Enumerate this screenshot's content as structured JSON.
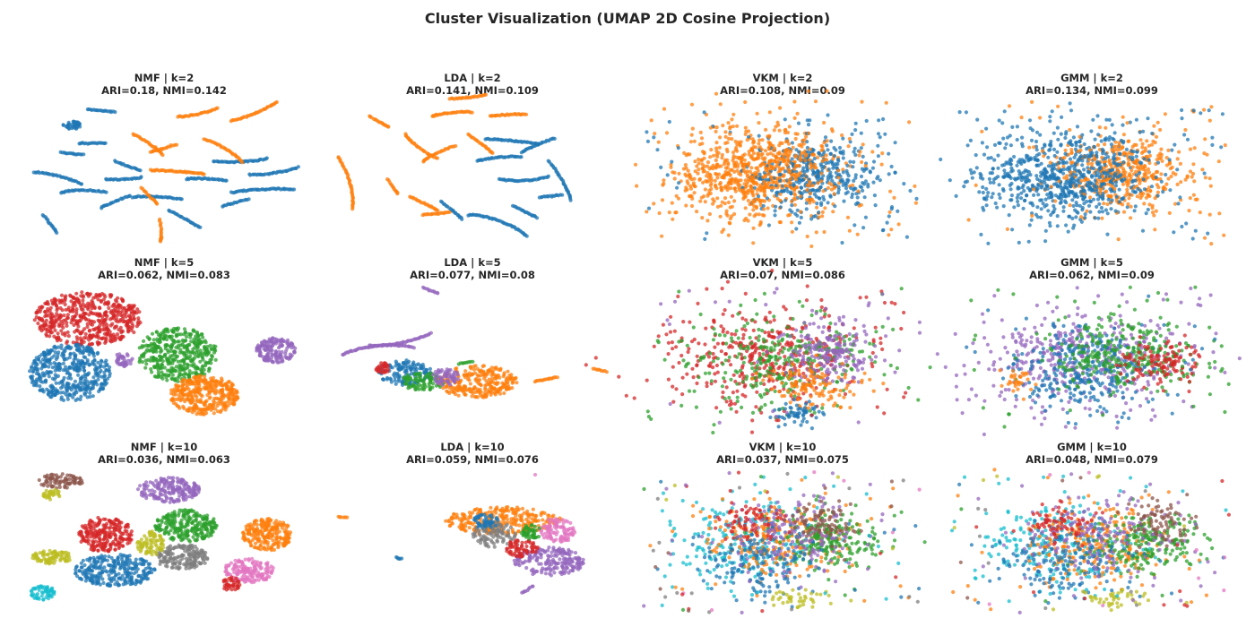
{
  "chart_data": {
    "type": "scatter",
    "title": "Cluster Visualization (UMAP 2D Cosine Projection)",
    "colors": [
      "#1f77b4",
      "#ff7f0e",
      "#2ca02c",
      "#d62728",
      "#9467bd",
      "#8c564b",
      "#e377c2",
      "#7f7f7f",
      "#bcbd22",
      "#17becf"
    ],
    "panels": [
      {
        "title": "NMF | k=2",
        "subtitle": "ARI=0.18, NMI=0.142",
        "method": "NMF",
        "k": 2,
        "ari": 0.18,
        "nmi": 0.142
      },
      {
        "title": "LDA | k=2",
        "subtitle": "ARI=0.141, NMI=0.109",
        "method": "LDA",
        "k": 2,
        "ari": 0.141,
        "nmi": 0.109
      },
      {
        "title": "VKM | k=2",
        "subtitle": "ARI=0.108, NMI=0.09",
        "method": "VKM",
        "k": 2,
        "ari": 0.108,
        "nmi": 0.09
      },
      {
        "title": "GMM | k=2",
        "subtitle": "ARI=0.134, NMI=0.099",
        "method": "GMM",
        "k": 2,
        "ari": 0.134,
        "nmi": 0.099
      },
      {
        "title": "NMF | k=5",
        "subtitle": "ARI=0.062, NMI=0.083",
        "method": "NMF",
        "k": 5,
        "ari": 0.062,
        "nmi": 0.083
      },
      {
        "title": "LDA | k=5",
        "subtitle": "ARI=0.077, NMI=0.08",
        "method": "LDA",
        "k": 5,
        "ari": 0.077,
        "nmi": 0.08
      },
      {
        "title": "VKM | k=5",
        "subtitle": "ARI=0.07, NMI=0.086",
        "method": "VKM",
        "k": 5,
        "ari": 0.07,
        "nmi": 0.086
      },
      {
        "title": "GMM | k=5",
        "subtitle": "ARI=0.062, NMI=0.09",
        "method": "GMM",
        "k": 5,
        "ari": 0.062,
        "nmi": 0.09
      },
      {
        "title": "NMF | k=10",
        "subtitle": "ARI=0.036, NMI=0.063",
        "method": "NMF",
        "k": 10,
        "ari": 0.036,
        "nmi": 0.063
      },
      {
        "title": "LDA | k=10",
        "subtitle": "ARI=0.059, NMI=0.076",
        "method": "LDA",
        "k": 10,
        "ari": 0.059,
        "nmi": 0.076
      },
      {
        "title": "VKM | k=10",
        "subtitle": "ARI=0.037, NMI=0.075",
        "method": "VKM",
        "k": 10,
        "ari": 0.037,
        "nmi": 0.075
      },
      {
        "title": "GMM | k=10",
        "subtitle": "ARI=0.048, NMI=0.079",
        "method": "GMM",
        "k": 10,
        "ari": 0.048,
        "nmi": 0.079
      }
    ]
  }
}
